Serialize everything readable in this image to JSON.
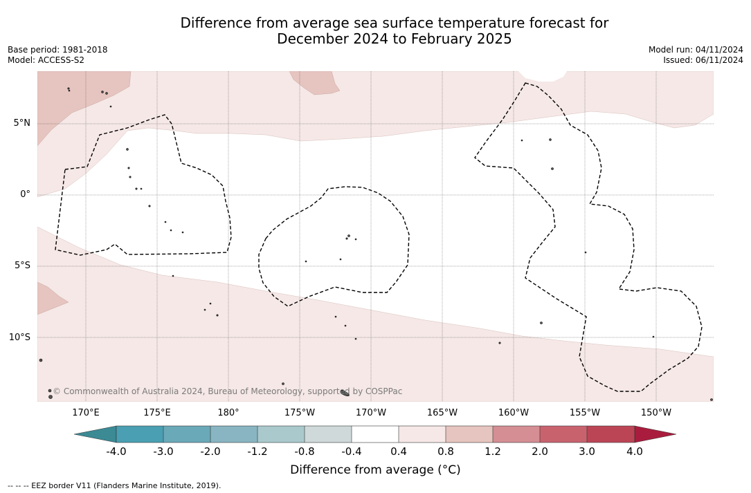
{
  "title": {
    "line1": "Difference from average sea surface temperature forecast for",
    "line2": "December 2024 to February 2025"
  },
  "meta_left": {
    "base_period": "Base period: 1981-2018",
    "model": "Model: ACCESS-S2"
  },
  "meta_right": {
    "model_run": "Model run: 04/11/2024",
    "issued": "Issued: 06/11/2024"
  },
  "map": {
    "lat_labels": [
      "5°N",
      "0°",
      "5°S",
      "10°S"
    ],
    "lon_labels": [
      "170°E",
      "175°E",
      "180°",
      "175°W",
      "170°W",
      "165°W",
      "160°W",
      "155°W",
      "150°W"
    ],
    "copyright": "© Commonwealth of Australia 2024, Bureau of Meteorology, supported by COSPPac",
    "colors": {
      "anomaly_04_08": "#f5e8e6",
      "anomaly_08_12": "#e6c4bf",
      "eez_border": "#000000",
      "land": "#555555"
    }
  },
  "colorbar": {
    "ticks": [
      "-4.0",
      "-3.0",
      "-2.0",
      "-1.2",
      "-0.8",
      "-0.4",
      "0.4",
      "0.8",
      "1.2",
      "2.0",
      "3.0",
      "4.0"
    ],
    "colors": [
      "#3b8a94",
      "#4aa0b2",
      "#6aa9b8",
      "#88b5c1",
      "#a9c9cd",
      "#cfd9d9",
      "#ffffff",
      "#f5e8e6",
      "#e6c4bf",
      "#d48e94",
      "#c8636e",
      "#bb4555",
      "#aa1c3d"
    ],
    "label": "Difference from average (°C)"
  },
  "legend": {
    "eez": "--  --  -- EEZ border V11 (Flanders Marine Institute, 2019)."
  }
}
